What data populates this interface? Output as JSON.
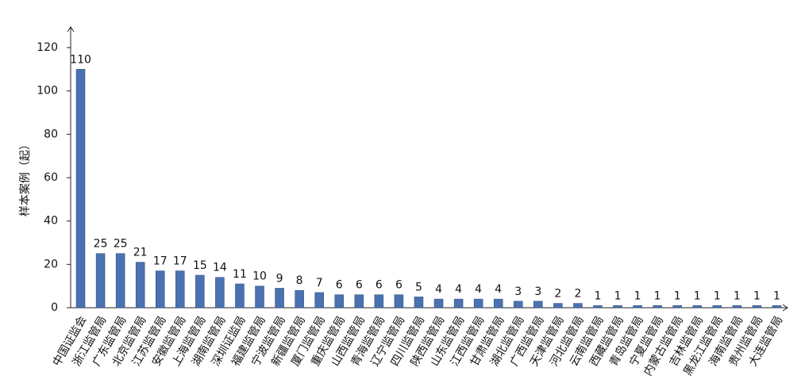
{
  "chart_data": {
    "type": "bar",
    "y_label": "样本案例（起）",
    "categories": [
      "中国证监会",
      "浙江监管局",
      "广东监管局",
      "北京监管局",
      "江苏监管局",
      "安徽监管局",
      "上海监管局",
      "湖南监管局",
      "深圳证监局",
      "福建监管局",
      "宁波监管局",
      "新疆监管局",
      "厦门监管局",
      "重庆监管局",
      "山西监管局",
      "青海监管局",
      "辽宁监管局",
      "四川监管局",
      "陕西监管局",
      "山东监管局",
      "江西监管局",
      "甘肃监管局",
      "湖北监管局",
      "广西监管局",
      "天津监管局",
      "河北监管局",
      "云南监管局",
      "西藏监管局",
      "青岛监管局",
      "宁夏监管局",
      "内蒙古监管局",
      "吉林监管局",
      "黑龙江监管局",
      "海南监管局",
      "贵州监管局",
      "大连监管局"
    ],
    "values": [
      110,
      25,
      25,
      21,
      17,
      17,
      15,
      14,
      11,
      10,
      9,
      8,
      7,
      6,
      6,
      6,
      6,
      5,
      4,
      4,
      4,
      4,
      3,
      3,
      2,
      2,
      1,
      1,
      1,
      1,
      1,
      1,
      1,
      1,
      1,
      1
    ],
    "color": "#4a72b0",
    "ylim": [
      0,
      120
    ],
    "yticks": [
      0,
      20,
      40,
      60,
      80,
      100,
      120
    ],
    "grid": false
  }
}
